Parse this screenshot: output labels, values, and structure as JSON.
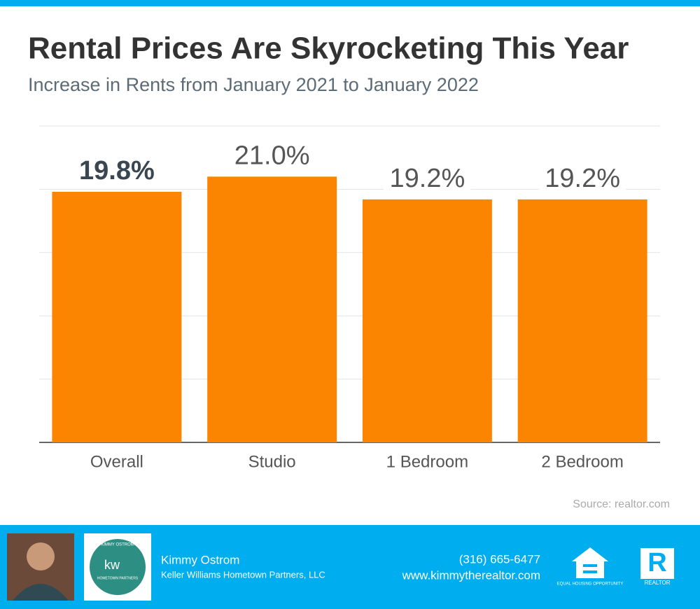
{
  "chart_data": {
    "type": "bar",
    "title": "Rental Prices Are Skyrocketing This Year",
    "subtitle": "Increase in Rents from January 2021 to January 2022",
    "categories": [
      "Overall",
      "Studio",
      "1 Bedroom",
      "2 Bedroom"
    ],
    "values": [
      19.8,
      21.0,
      19.2,
      19.2
    ],
    "value_labels": [
      "19.8%",
      "21.0%",
      "19.2%",
      "19.2%"
    ],
    "color": "#fb8500",
    "ylim": [
      0,
      25
    ],
    "yticks": [
      0,
      5,
      10,
      15,
      20,
      25
    ],
    "grid": true,
    "source": "Source: realtor.com"
  },
  "footer": {
    "name": "Kimmy Ostrom",
    "company": "Keller Williams Hometown Partners, LLC",
    "phone": "(316) 665-6477",
    "website": "www.kimmytherealtor.com",
    "kw_logo": {
      "ring": "KIMMY OSTROM",
      "mark": "kw",
      "line": "HOMETOWN PARTNERS"
    },
    "equal_housing": "EQUAL HOUSING OPPORTUNITY",
    "realtor_mark": "R",
    "realtor": "REALTOR"
  }
}
